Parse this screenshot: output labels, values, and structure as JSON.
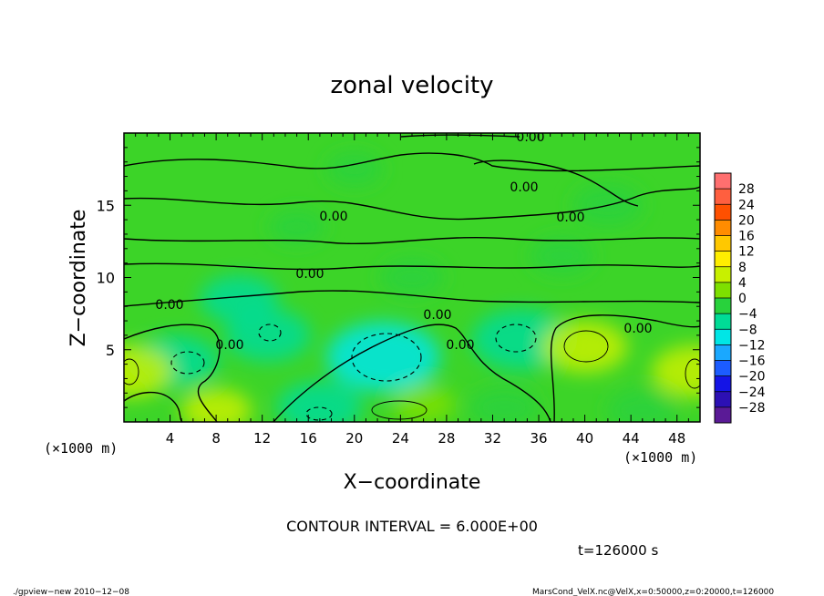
{
  "chart_data": {
    "type": "heatmap",
    "title": "zonal velocity",
    "xlabel": "X−coordinate",
    "ylabel": "Z−coordinate",
    "x_units": "(×1000 m)",
    "z_units": "(×1000 m)",
    "xlim": [
      0,
      50
    ],
    "ylim": [
      0,
      20
    ],
    "x_ticks": [
      4,
      8,
      12,
      16,
      20,
      24,
      28,
      32,
      36,
      40,
      44,
      48
    ],
    "y_ticks": [
      5,
      10,
      15
    ],
    "contour_interval_label": "CONTOUR INTERVAL = 6.000E+00",
    "time_label": "t=126000 s",
    "contour_labels": [
      "0.00",
      "0.00",
      "0.00",
      "0.00",
      "0.00",
      "0.00",
      "0.00",
      "0.00",
      "0.00",
      "0.00"
    ],
    "colorbar": {
      "labels": [
        "28",
        "24",
        "20",
        "16",
        "12",
        "8",
        "4",
        "0",
        "−4",
        "−8",
        "−12",
        "−16",
        "−20",
        "−24",
        "−28"
      ],
      "colors": [
        "#ff6f6f",
        "#ff5f3f",
        "#ff5000",
        "#ff8c00",
        "#ffc800",
        "#ffee00",
        "#c8f000",
        "#7ee000",
        "#28d23c",
        "#00dc96",
        "#00e6e6",
        "#1aa8ff",
        "#1c5cff",
        "#1414e6",
        "#2c10b4",
        "#5a1a96"
      ]
    },
    "field_blobs": [
      {
        "x": 22.5,
        "z": 4.5,
        "value": -10
      },
      {
        "x": 34.5,
        "z": 5.7,
        "value": -8
      },
      {
        "x": 4.5,
        "z": 4.2,
        "value": -6
      },
      {
        "x": 12.5,
        "z": 6.0,
        "value": -6
      },
      {
        "x": 40.0,
        "z": 5.2,
        "value": 6
      },
      {
        "x": 0.5,
        "z": 3.5,
        "value": 6
      },
      {
        "x": 49.5,
        "z": 3.5,
        "value": 6
      },
      {
        "x": 8.0,
        "z": 0.8,
        "value": 4
      },
      {
        "x": 26.0,
        "z": 1.2,
        "value": 3
      },
      {
        "x": 17.0,
        "z": 1.0,
        "value": -6
      },
      {
        "x": 33.0,
        "z": 1.0,
        "value": -4
      },
      {
        "x": 45.0,
        "z": 0.8,
        "value": -4
      },
      {
        "x": 10.0,
        "z": 8.5,
        "value": -5
      },
      {
        "x": 25.0,
        "z": 10.0,
        "value": -3
      },
      {
        "x": 38.0,
        "z": 11.5,
        "value": -3
      },
      {
        "x": 15.0,
        "z": 13.5,
        "value": -2
      },
      {
        "x": 42.0,
        "z": 15.0,
        "value": -4
      },
      {
        "x": 20.0,
        "z": 17.5,
        "value": -2
      }
    ]
  },
  "footer": {
    "left": "./gpview−new   2010−12−08",
    "right": "MarsCond_VelX.nc@VelX,x=0:50000,z=0:20000,t=126000"
  }
}
